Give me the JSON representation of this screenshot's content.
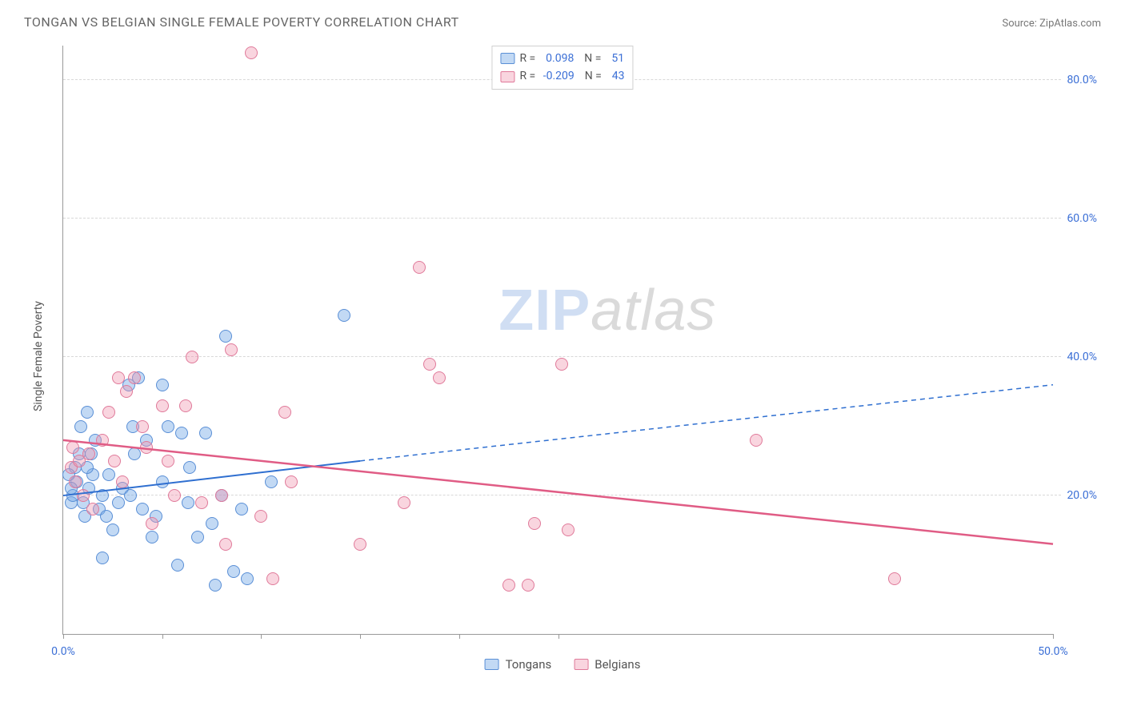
{
  "header": {
    "title": "TONGAN VS BELGIAN SINGLE FEMALE POVERTY CORRELATION CHART",
    "source_label": "Source: ZipAtlas.com"
  },
  "chart": {
    "type": "scatter",
    "y_axis_label": "Single Female Poverty",
    "xlim": [
      0,
      50
    ],
    "ylim": [
      0,
      85
    ],
    "x_ticks": [
      0,
      5,
      10,
      15,
      20,
      25,
      50
    ],
    "x_tick_labels": {
      "0": "0.0%",
      "50": "50.0%"
    },
    "y_gridlines": [
      20,
      40,
      60,
      80
    ],
    "y_tick_labels": {
      "20": "20.0%",
      "40": "40.0%",
      "60": "60.0%",
      "80": "80.0%"
    },
    "grid_color": "#d8d8d8",
    "axis_color": "#999999",
    "background_color": "#ffffff",
    "tick_label_color": "#3b6fd6",
    "marker_radius": 8,
    "marker_border_width": 1.2,
    "series": [
      {
        "name": "Tongans",
        "fill_color": "rgba(120,170,230,0.45)",
        "border_color": "#5a8fd6",
        "R": "0.098",
        "N": "51",
        "trend": {
          "solid": {
            "x1": 0,
            "y1": 20,
            "x2": 15,
            "y2": 25
          },
          "dashed": {
            "x1": 15,
            "y1": 25,
            "x2": 50,
            "y2": 36
          },
          "color": "#2f6fd0",
          "width": 2
        },
        "points": [
          [
            0.4,
            19
          ],
          [
            0.5,
            20
          ],
          [
            0.7,
            22
          ],
          [
            0.6,
            24
          ],
          [
            0.8,
            26
          ],
          [
            0.4,
            21
          ],
          [
            0.3,
            23
          ],
          [
            1.0,
            19
          ],
          [
            1.1,
            17
          ],
          [
            1.3,
            21
          ],
          [
            1.5,
            23
          ],
          [
            1.2,
            24
          ],
          [
            1.4,
            26
          ],
          [
            1.6,
            28
          ],
          [
            0.9,
            30
          ],
          [
            1.2,
            32
          ],
          [
            1.8,
            18
          ],
          [
            2.0,
            20
          ],
          [
            2.2,
            17
          ],
          [
            2.5,
            15
          ],
          [
            2.3,
            23
          ],
          [
            2.8,
            19
          ],
          [
            3.0,
            21
          ],
          [
            3.4,
            20
          ],
          [
            3.6,
            26
          ],
          [
            3.3,
            36
          ],
          [
            3.8,
            37
          ],
          [
            3.5,
            30
          ],
          [
            4.0,
            18
          ],
          [
            4.2,
            28
          ],
          [
            4.5,
            14
          ],
          [
            4.7,
            17
          ],
          [
            5.0,
            22
          ],
          [
            5.0,
            36
          ],
          [
            5.3,
            30
          ],
          [
            5.8,
            10
          ],
          [
            6.0,
            29
          ],
          [
            6.3,
            19
          ],
          [
            6.4,
            24
          ],
          [
            6.8,
            14
          ],
          [
            7.2,
            29
          ],
          [
            7.5,
            16
          ],
          [
            7.7,
            7
          ],
          [
            8.2,
            43
          ],
          [
            8.0,
            20
          ],
          [
            8.6,
            9
          ],
          [
            9.3,
            8
          ],
          [
            9.0,
            18
          ],
          [
            10.5,
            22
          ],
          [
            14.2,
            46
          ],
          [
            2.0,
            11
          ]
        ]
      },
      {
        "name": "Belgians",
        "fill_color": "rgba(240,150,175,0.40)",
        "border_color": "#e07a9a",
        "R": "-0.209",
        "N": "43",
        "trend": {
          "solid": {
            "x1": 0,
            "y1": 28,
            "x2": 50,
            "y2": 13
          },
          "color": "#e05c85",
          "width": 2.5
        },
        "points": [
          [
            0.4,
            24
          ],
          [
            0.6,
            22
          ],
          [
            0.8,
            25
          ],
          [
            0.5,
            27
          ],
          [
            1.0,
            20
          ],
          [
            1.3,
            26
          ],
          [
            1.5,
            18
          ],
          [
            2.0,
            28
          ],
          [
            2.3,
            32
          ],
          [
            2.6,
            25
          ],
          [
            2.8,
            37
          ],
          [
            3.0,
            22
          ],
          [
            3.2,
            35
          ],
          [
            3.6,
            37
          ],
          [
            4.0,
            30
          ],
          [
            4.2,
            27
          ],
          [
            4.5,
            16
          ],
          [
            5.0,
            33
          ],
          [
            5.3,
            25
          ],
          [
            5.6,
            20
          ],
          [
            6.2,
            33
          ],
          [
            6.5,
            40
          ],
          [
            7.0,
            19
          ],
          [
            8.0,
            20
          ],
          [
            8.2,
            13
          ],
          [
            8.5,
            41
          ],
          [
            9.5,
            84
          ],
          [
            10.0,
            17
          ],
          [
            10.6,
            8
          ],
          [
            11.2,
            32
          ],
          [
            11.5,
            22
          ],
          [
            15.0,
            13
          ],
          [
            17.2,
            19
          ],
          [
            18.0,
            53
          ],
          [
            18.5,
            39
          ],
          [
            19.0,
            37
          ],
          [
            22.5,
            7
          ],
          [
            23.5,
            7
          ],
          [
            23.8,
            16
          ],
          [
            25.2,
            39
          ],
          [
            25.5,
            15
          ],
          [
            35.0,
            28
          ],
          [
            42.0,
            8
          ]
        ]
      }
    ],
    "legend_bottom": [
      "Tongans",
      "Belgians"
    ],
    "watermark": {
      "zip": "ZIP",
      "atlas": "atlas"
    }
  }
}
